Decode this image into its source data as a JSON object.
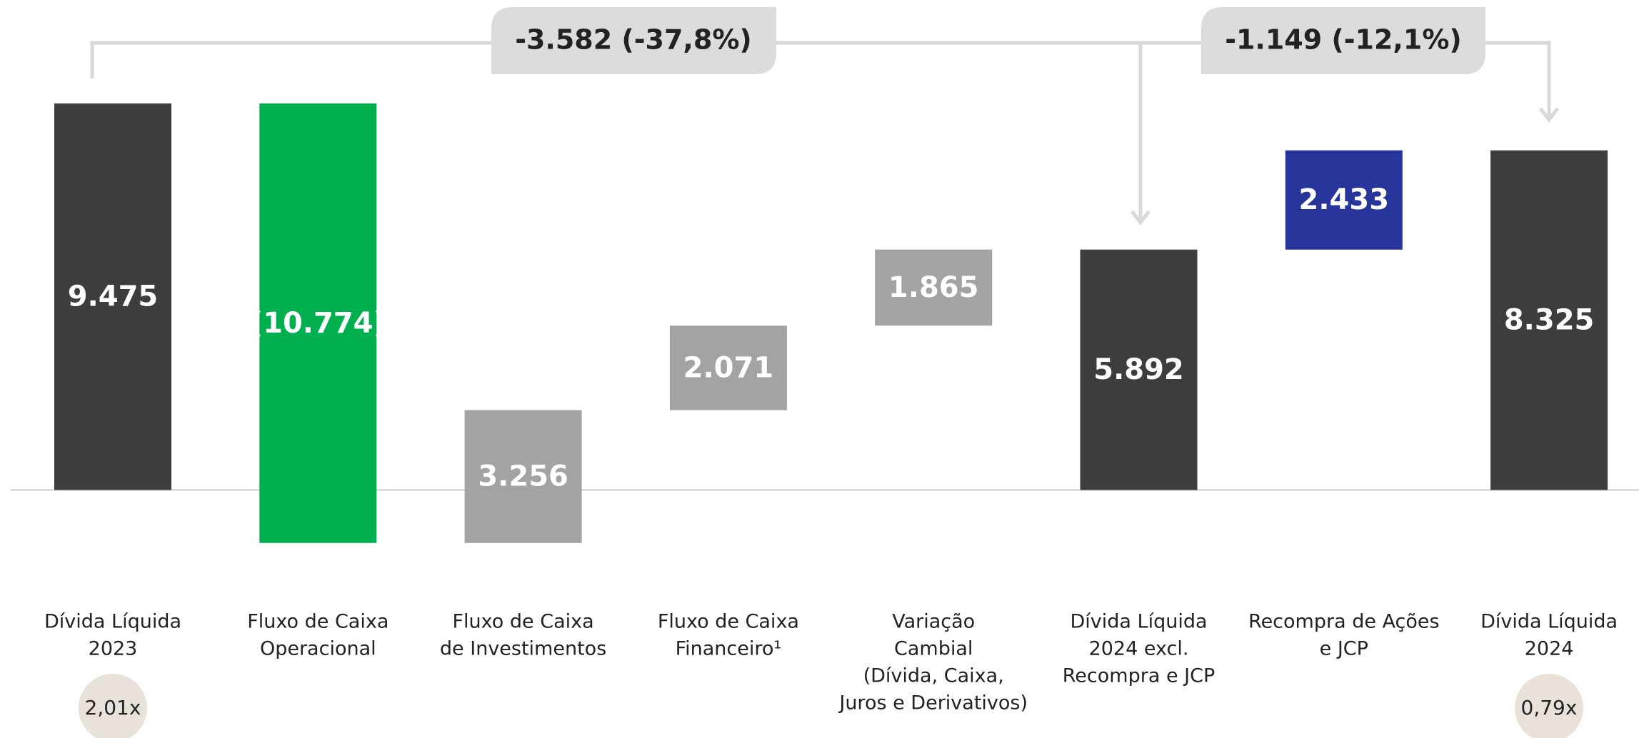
{
  "chart_data": {
    "type": "waterfall",
    "categories": [
      [
        "Dívida Líquida",
        "2023"
      ],
      [
        "Fluxo de Caixa",
        "Operacional"
      ],
      [
        "Fluxo de Caixa",
        "de Investimentos"
      ],
      [
        "Fluxo de Caixa",
        "Financeiro¹"
      ],
      [
        "Variação",
        "Cambial",
        "(Dívida, Caixa,",
        "Juros e Derivativos)"
      ],
      [
        "Dívida Líquida",
        "2024 excl.",
        "Recompra e JCP"
      ],
      [
        "Recompra de Ações",
        "e JCP"
      ],
      [
        "Dívida Líquida",
        "2024"
      ]
    ],
    "values": [
      9475,
      -10774,
      3256,
      2071,
      1865,
      5892,
      2433,
      8325
    ],
    "value_labels": [
      "9.475",
      "(10.774)",
      "3.256",
      "2.071",
      "1.865",
      "5.892",
      "2.433",
      "8.325"
    ],
    "bar_kind": [
      "total",
      "delta",
      "delta",
      "delta",
      "delta",
      "total",
      "delta",
      "total"
    ],
    "colors": [
      "#3d3d3d",
      "#00b04f",
      "#a3a3a3",
      "#a3a3a3",
      "#a3a3a3",
      "#3d3d3d",
      "#27359a",
      "#3d3d3d"
    ],
    "annotations": [
      "-3.582 (-37,8%)",
      "-1.149 (-12,1%)"
    ],
    "leverage": [
      "2,01x",
      "0,79x"
    ]
  }
}
